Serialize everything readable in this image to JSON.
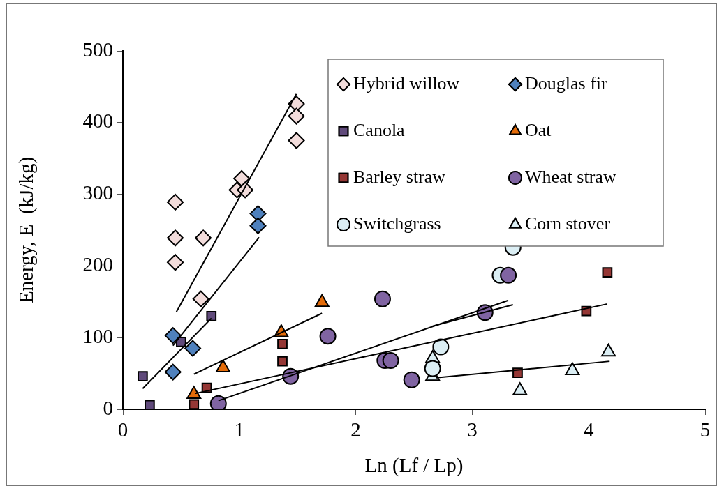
{
  "chart_data": {
    "type": "scatter",
    "xlabel": "Ln (Lf / Lp)",
    "ylabel": "Energy, E  (kJ/kg)",
    "xlim": [
      0,
      5
    ],
    "xticks": [
      0,
      1,
      2,
      3,
      4,
      5
    ],
    "ylim": [
      0,
      500
    ],
    "yticks": [
      0,
      100,
      200,
      300,
      400,
      500
    ],
    "grid": false,
    "legend": "top right",
    "series": [
      {
        "name": "Hybrid willow",
        "color": "#f2dcdb",
        "marker": "diamond",
        "x": [
          0.45,
          0.45,
          0.45,
          0.67,
          0.69,
          0.98,
          1.02,
          1.05,
          1.49,
          1.49,
          1.49
        ],
        "values": [
          289,
          239,
          205,
          154,
          239,
          306,
          322,
          306,
          426,
          409,
          375
        ]
      },
      {
        "name": "Douglas fir",
        "color": "#4f81bd",
        "marker": "diamond",
        "x": [
          0.43,
          0.43,
          0.6,
          1.16,
          1.16
        ],
        "values": [
          103,
          52,
          85,
          273,
          256
        ]
      },
      {
        "name": "Canola",
        "color": "#604a7b",
        "marker": "square",
        "x": [
          0.17,
          0.23,
          0.5,
          0.76
        ],
        "values": [
          46,
          6,
          94,
          130
        ]
      },
      {
        "name": "Oat",
        "color": "#e46c0a",
        "marker": "triangle",
        "x": [
          0.61,
          0.86,
          1.36,
          1.71
        ],
        "values": [
          21,
          58,
          107,
          149
        ]
      },
      {
        "name": "Barley straw",
        "color": "#953735",
        "marker": "square",
        "x": [
          0.61,
          0.72,
          1.37,
          1.37,
          3.39,
          3.98,
          4.16
        ],
        "values": [
          7,
          30,
          91,
          67,
          51,
          137,
          191
        ]
      },
      {
        "name": "Wheat straw",
        "color": "#8064a2",
        "marker": "circle",
        "x": [
          0.82,
          1.44,
          1.76,
          2.23,
          2.25,
          2.3,
          2.48,
          3.11,
          3.31
        ],
        "values": [
          8,
          46,
          102,
          154,
          68,
          68,
          41,
          135,
          187
        ]
      },
      {
        "name": "Switchgrass",
        "color": "#dbeef4",
        "marker": "circle",
        "x": [
          2.66,
          2.73,
          3.24,
          3.35
        ],
        "values": [
          57,
          87,
          187,
          226
        ]
      },
      {
        "name": "Corn stover",
        "color": "#dbeef4",
        "marker": "triangle",
        "x": [
          2.66,
          2.66,
          3.41,
          3.86,
          4.17
        ],
        "values": [
          71,
          46,
          26,
          54,
          80
        ]
      },
      {
        "type": "line",
        "color": "#000000",
        "marker": "none",
        "x": [
          0.46,
          1.49
        ],
        "values": [
          136,
          440
        ]
      },
      {
        "type": "line",
        "color": "#000000",
        "marker": "none",
        "x": [
          0.43,
          1.17
        ],
        "values": [
          89,
          240
        ]
      },
      {
        "type": "line",
        "color": "#000000",
        "marker": "none",
        "x": [
          0.17,
          0.76
        ],
        "values": [
          29,
          127
        ]
      },
      {
        "type": "line",
        "color": "#000000",
        "marker": "none",
        "x": [
          0.61,
          1.71
        ],
        "values": [
          49,
          134
        ]
      },
      {
        "type": "line",
        "color": "#000000",
        "marker": "none",
        "x": [
          0.62,
          4.16
        ],
        "values": [
          22,
          147
        ]
      },
      {
        "type": "line",
        "color": "#000000",
        "marker": "none",
        "x": [
          0.82,
          3.31
        ],
        "values": [
          12,
          152
        ]
      },
      {
        "type": "line",
        "color": "#000000",
        "marker": "none",
        "x": [
          2.66,
          3.35
        ],
        "values": [
          116,
          146
        ]
      },
      {
        "type": "line",
        "color": "#000000",
        "marker": "none",
        "x": [
          2.69,
          4.18
        ],
        "values": [
          44,
          67
        ]
      }
    ]
  }
}
